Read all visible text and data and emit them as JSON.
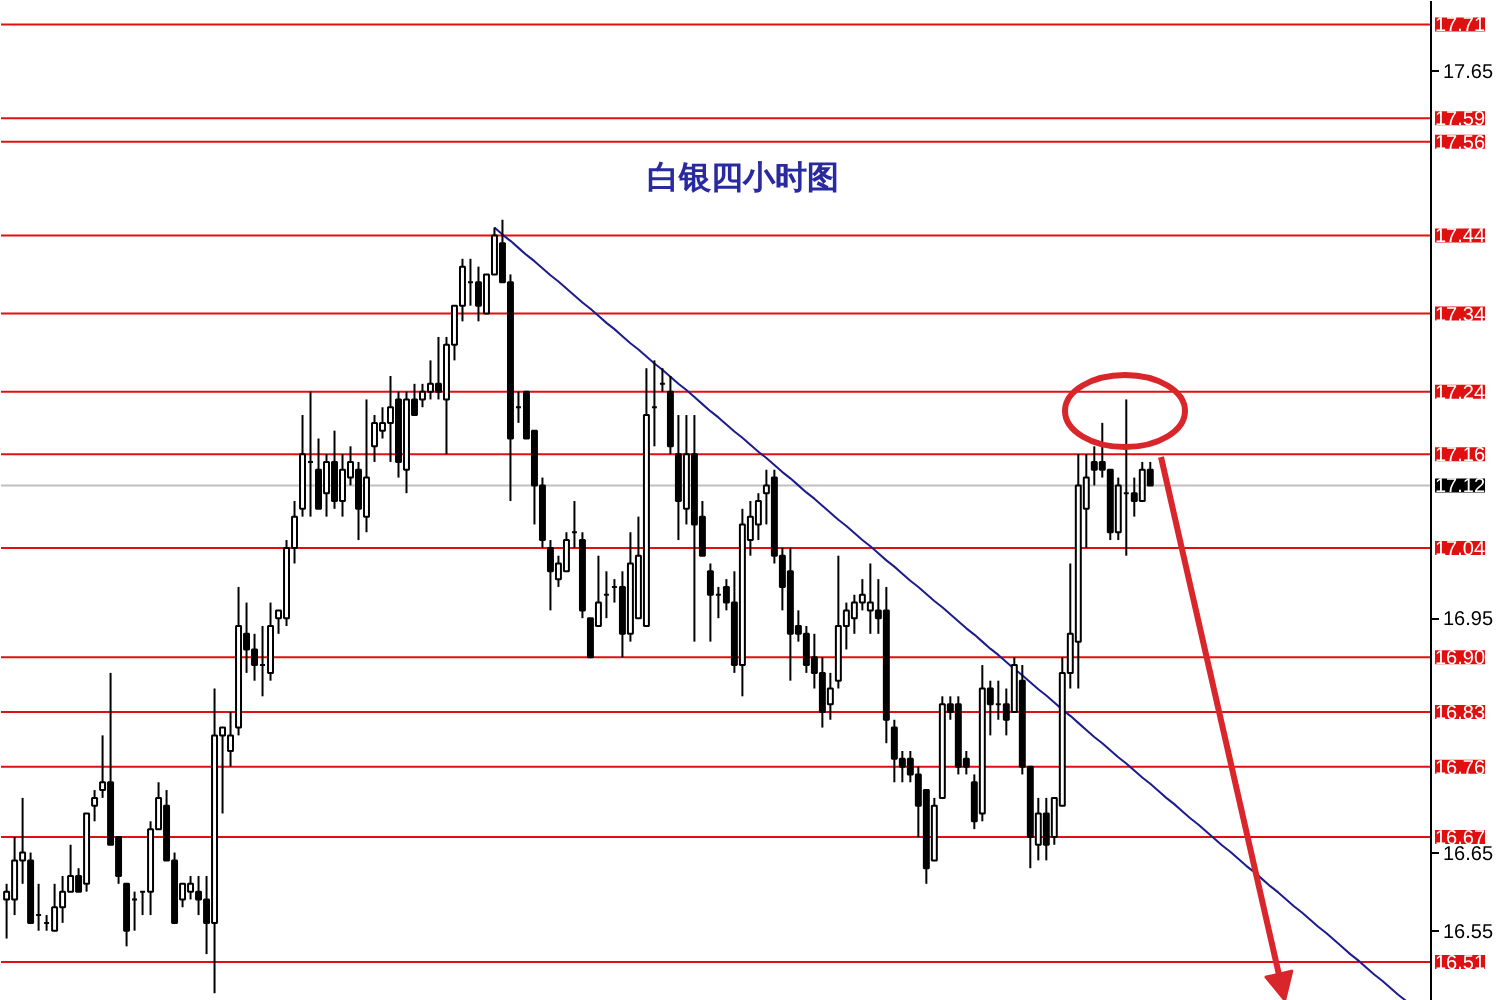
{
  "chart_data": {
    "type": "candlestick",
    "title": "白银四小时图",
    "categories": [
      null,
      null,
      null,
      null,
      null,
      null,
      null,
      null,
      null,
      null,
      null,
      null,
      null,
      null,
      null,
      null,
      null,
      null,
      null,
      null,
      null,
      null,
      null,
      null,
      null,
      null,
      null,
      null,
      null,
      null,
      null,
      null,
      null,
      null,
      null,
      null,
      null,
      null,
      null,
      null,
      null,
      null,
      null,
      null,
      null,
      null,
      null,
      null,
      null,
      null,
      null,
      null,
      null,
      null,
      null,
      null,
      null,
      null,
      null,
      null,
      null,
      null,
      null,
      null,
      null,
      null,
      null,
      null,
      null,
      null,
      null,
      null,
      null,
      null,
      null,
      null,
      null,
      null,
      null,
      null,
      null,
      null,
      null,
      null,
      null,
      null,
      null,
      null,
      null,
      null,
      null,
      null,
      null,
      null,
      null,
      null,
      null,
      null,
      null,
      null,
      null,
      null,
      null,
      null,
      null,
      null,
      null,
      null,
      null,
      null,
      null,
      null,
      null,
      null,
      null,
      null,
      null,
      null,
      null,
      null,
      null,
      null,
      null,
      null,
      null,
      null,
      null,
      null,
      null,
      null,
      null,
      null,
      null,
      null,
      null,
      null,
      null,
      null,
      null,
      null,
      null,
      null,
      null,
      null,
      null,
      null,
      null,
      null,
      null,
      null,
      null,
      null,
      null,
      null,
      null,
      null,
      null,
      null,
      null,
      null,
      null,
      null,
      null,
      null,
      null,
      null,
      null,
      null,
      null,
      null,
      null,
      null,
      null,
      null,
      null,
      null,
      null,
      null
    ],
    "ohlc": [
      [
        16.59,
        16.61,
        16.54,
        16.6
      ],
      [
        16.59,
        16.67,
        16.57,
        16.64
      ],
      [
        16.64,
        16.72,
        16.61,
        16.65
      ],
      [
        16.64,
        16.65,
        16.56,
        16.56
      ],
      [
        16.57,
        16.61,
        16.55,
        16.57
      ],
      [
        16.56,
        16.57,
        16.55,
        16.56
      ],
      [
        16.55,
        16.61,
        16.55,
        16.58
      ],
      [
        16.58,
        16.62,
        16.56,
        16.6
      ],
      [
        16.6,
        16.66,
        16.6,
        16.62
      ],
      [
        16.62,
        16.63,
        16.6,
        16.6
      ],
      [
        16.61,
        16.7,
        16.6,
        16.7
      ],
      [
        16.71,
        16.73,
        16.69,
        16.72
      ],
      [
        16.73,
        16.8,
        16.72,
        16.74
      ],
      [
        16.74,
        16.88,
        16.66,
        16.66
      ],
      [
        16.67,
        16.67,
        16.61,
        16.62
      ],
      [
        16.61,
        16.61,
        16.53,
        16.55
      ],
      [
        16.59,
        16.6,
        16.55,
        16.59
      ],
      [
        16.6,
        16.6,
        16.57,
        16.6
      ],
      [
        16.6,
        16.69,
        16.57,
        16.68
      ],
      [
        16.68,
        16.74,
        16.68,
        16.72
      ],
      [
        16.71,
        16.73,
        16.64,
        16.64
      ],
      [
        16.64,
        16.65,
        16.56,
        16.56
      ],
      [
        16.59,
        16.61,
        16.58,
        16.61
      ],
      [
        16.6,
        16.62,
        16.59,
        16.61
      ],
      [
        16.6,
        16.62,
        16.57,
        16.59
      ],
      [
        16.59,
        16.62,
        16.52,
        16.56
      ],
      [
        16.56,
        16.86,
        16.47,
        16.8
      ],
      [
        16.8,
        16.81,
        16.7,
        16.81
      ],
      [
        16.78,
        16.83,
        16.76,
        16.8
      ],
      [
        16.81,
        16.99,
        16.8,
        16.94
      ],
      [
        16.93,
        16.97,
        16.88,
        16.91
      ],
      [
        16.91,
        16.93,
        16.87,
        16.89
      ],
      [
        16.89,
        16.94,
        16.85,
        16.89
      ],
      [
        16.88,
        16.97,
        16.87,
        16.94
      ],
      [
        16.95,
        16.96,
        16.93,
        16.96
      ],
      [
        16.95,
        17.05,
        16.94,
        17.04
      ],
      [
        17.04,
        17.1,
        17.02,
        17.08
      ],
      [
        17.09,
        17.21,
        17.08,
        17.16
      ],
      [
        17.15,
        17.24,
        17.08,
        17.15
      ],
      [
        17.14,
        17.18,
        17.09,
        17.09
      ],
      [
        17.11,
        17.16,
        17.08,
        17.15
      ],
      [
        17.15,
        17.19,
        17.09,
        17.1
      ],
      [
        17.1,
        17.16,
        17.08,
        17.14
      ],
      [
        17.13,
        17.17,
        17.12,
        17.15
      ],
      [
        17.14,
        17.15,
        17.05,
        17.09
      ],
      [
        17.08,
        17.23,
        17.06,
        17.13
      ],
      [
        17.17,
        17.21,
        17.15,
        17.2
      ],
      [
        17.19,
        17.22,
        17.18,
        17.2
      ],
      [
        17.2,
        17.26,
        17.15,
        17.22
      ],
      [
        17.23,
        17.24,
        17.13,
        17.15
      ],
      [
        17.14,
        17.24,
        17.11,
        17.23
      ],
      [
        17.23,
        17.25,
        17.21,
        17.21
      ],
      [
        17.23,
        17.25,
        17.22,
        17.24
      ],
      [
        17.24,
        17.28,
        17.23,
        17.25
      ],
      [
        17.25,
        17.31,
        17.23,
        17.24
      ],
      [
        17.23,
        17.31,
        17.16,
        17.3
      ],
      [
        17.3,
        17.35,
        17.28,
        17.35
      ],
      [
        17.35,
        17.41,
        17.33,
        17.4
      ],
      [
        17.38,
        17.41,
        17.35,
        17.38
      ],
      [
        17.38,
        17.4,
        17.33,
        17.35
      ],
      [
        17.34,
        17.39,
        17.34,
        17.39
      ],
      [
        17.39,
        17.45,
        17.39,
        17.44
      ],
      [
        17.43,
        17.46,
        17.38,
        17.38
      ],
      [
        17.38,
        17.39,
        17.1,
        17.18
      ],
      [
        17.22,
        17.24,
        17.2,
        17.22
      ],
      [
        17.24,
        17.24,
        17.18,
        17.18
      ],
      [
        17.19,
        17.19,
        17.07,
        17.12
      ],
      [
        17.12,
        17.13,
        17.04,
        17.05
      ],
      [
        17.04,
        17.05,
        16.96,
        17.01
      ],
      [
        17.0,
        17.03,
        16.99,
        17.02
      ],
      [
        17.01,
        17.06,
        17.01,
        17.05
      ],
      [
        17.06,
        17.1,
        17.04,
        17.06
      ],
      [
        17.05,
        17.06,
        16.95,
        16.96
      ],
      [
        16.95,
        16.95,
        16.9,
        16.9
      ],
      [
        16.94,
        17.03,
        16.94,
        16.97
      ],
      [
        16.98,
        17.01,
        16.95,
        16.98
      ],
      [
        16.99,
        17.0,
        16.97,
        16.99
      ],
      [
        16.99,
        17.01,
        16.9,
        16.93
      ],
      [
        16.93,
        17.06,
        16.92,
        17.02
      ],
      [
        16.95,
        17.08,
        16.95,
        17.03
      ],
      [
        16.94,
        17.27,
        16.94,
        17.21
      ],
      [
        17.22,
        17.28,
        17.17,
        17.22
      ],
      [
        17.25,
        17.27,
        17.24,
        17.25
      ],
      [
        17.24,
        17.26,
        17.16,
        17.17
      ],
      [
        17.16,
        17.21,
        17.05,
        17.1
      ],
      [
        17.09,
        17.21,
        17.07,
        17.16
      ],
      [
        17.16,
        17.21,
        16.92,
        17.07
      ],
      [
        17.08,
        17.1,
        17.03,
        17.03
      ],
      [
        17.01,
        17.02,
        16.92,
        16.98
      ],
      [
        16.98,
        16.99,
        16.95,
        16.98
      ],
      [
        16.99,
        17.0,
        16.96,
        16.97
      ],
      [
        16.97,
        17.01,
        16.88,
        16.89
      ],
      [
        16.89,
        17.09,
        16.85,
        17.07
      ],
      [
        17.05,
        17.1,
        17.03,
        17.08
      ],
      [
        17.07,
        17.11,
        17.05,
        17.1
      ],
      [
        17.11,
        17.14,
        17.07,
        17.12
      ],
      [
        17.13,
        17.14,
        17.02,
        17.03
      ],
      [
        17.03,
        17.04,
        16.96,
        16.99
      ],
      [
        17.01,
        17.04,
        16.87,
        16.93
      ],
      [
        16.94,
        16.96,
        16.92,
        16.93
      ],
      [
        16.93,
        16.94,
        16.88,
        16.89
      ],
      [
        16.9,
        16.93,
        16.86,
        16.88
      ],
      [
        16.88,
        16.9,
        16.81,
        16.83
      ],
      [
        16.84,
        16.88,
        16.82,
        16.86
      ],
      [
        16.87,
        17.03,
        16.86,
        16.94
      ],
      [
        16.94,
        16.97,
        16.91,
        16.96
      ],
      [
        16.95,
        16.98,
        16.93,
        16.97
      ],
      [
        16.97,
        17.0,
        16.96,
        16.98
      ],
      [
        16.96,
        17.02,
        16.93,
        16.97
      ],
      [
        16.96,
        17.0,
        16.93,
        16.95
      ],
      [
        16.96,
        16.99,
        16.79,
        16.82
      ],
      [
        16.81,
        16.82,
        16.74,
        16.77
      ],
      [
        16.77,
        16.78,
        16.74,
        16.76
      ],
      [
        16.77,
        16.78,
        16.74,
        16.75
      ],
      [
        16.75,
        16.76,
        16.67,
        16.71
      ],
      [
        16.73,
        16.73,
        16.61,
        16.63
      ],
      [
        16.64,
        16.72,
        16.64,
        16.71
      ],
      [
        16.72,
        16.85,
        16.72,
        16.84
      ],
      [
        16.84,
        16.85,
        16.82,
        16.83
      ],
      [
        16.84,
        16.85,
        16.75,
        16.76
      ],
      [
        16.77,
        16.78,
        16.75,
        16.76
      ],
      [
        16.74,
        16.75,
        16.68,
        16.69
      ],
      [
        16.7,
        16.89,
        16.69,
        16.86
      ],
      [
        16.86,
        16.87,
        16.8,
        16.84
      ],
      [
        16.84,
        16.87,
        16.82,
        16.84
      ],
      [
        16.84,
        16.86,
        16.8,
        16.82
      ],
      [
        16.83,
        16.9,
        16.83,
        16.89
      ],
      [
        16.87,
        16.89,
        16.75,
        16.76
      ],
      [
        16.76,
        16.76,
        16.63,
        16.67
      ],
      [
        16.66,
        16.72,
        16.64,
        16.7
      ],
      [
        16.7,
        16.72,
        16.64,
        16.66
      ],
      [
        16.67,
        16.72,
        16.66,
        16.72
      ],
      [
        16.71,
        16.9,
        16.71,
        16.88
      ],
      [
        16.88,
        17.02,
        16.86,
        16.93
      ],
      [
        16.92,
        17.16,
        16.86,
        17.12
      ],
      [
        17.09,
        17.16,
        17.04,
        17.13
      ],
      [
        17.15,
        17.17,
        17.12,
        17.14
      ],
      [
        17.15,
        17.2,
        17.13,
        17.14
      ],
      [
        17.14,
        17.14,
        17.05,
        17.06
      ],
      [
        17.06,
        17.13,
        17.05,
        17.12
      ],
      [
        17.11,
        17.23,
        17.03,
        17.11
      ],
      [
        17.11,
        17.13,
        17.08,
        17.1
      ],
      [
        17.1,
        17.15,
        17.1,
        17.14
      ],
      [
        17.14,
        17.15,
        17.12,
        17.12
      ],
      null,
      null,
      null,
      null,
      null,
      null,
      null,
      null,
      null,
      null,
      null,
      null,
      null,
      null,
      null,
      null,
      null,
      null,
      null,
      null,
      null,
      null,
      null,
      null,
      null,
      null,
      null,
      null,
      null,
      null,
      null,
      null,
      null,
      null
    ],
    "color": "#000000",
    "series": [
      {
        "type": "line",
        "color": "#1c1c8c",
        "values": [
          null,
          null,
          null,
          null,
          null,
          null,
          null,
          null,
          null,
          null,
          null,
          null,
          null,
          null,
          null,
          null,
          null,
          null,
          null,
          null,
          null,
          null,
          null,
          null,
          null,
          null,
          null,
          null,
          null,
          null,
          null,
          null,
          null,
          null,
          null,
          null,
          null,
          null,
          null,
          null,
          null,
          null,
          null,
          null,
          null,
          null,
          null,
          null,
          null,
          null,
          null,
          null,
          null,
          null,
          null,
          null,
          null,
          null,
          null,
          null,
          null,
          17.45,
          17.441,
          17.433,
          17.424,
          17.415,
          17.407,
          17.398,
          17.389,
          17.381,
          17.372,
          17.363,
          17.354,
          17.346,
          17.337,
          17.328,
          17.32,
          17.311,
          17.302,
          17.294,
          17.285,
          17.276,
          17.268,
          17.259,
          17.25,
          17.242,
          17.233,
          17.224,
          17.215,
          17.207,
          17.198,
          17.189,
          17.181,
          17.172,
          17.163,
          17.155,
          17.146,
          17.137,
          17.129,
          17.12,
          17.111,
          17.103,
          17.094,
          17.085,
          17.076,
          17.068,
          17.059,
          17.05,
          17.042,
          17.033,
          17.024,
          17.016,
          17.007,
          16.998,
          16.99,
          16.981,
          16.972,
          16.964,
          16.955,
          16.946,
          16.937,
          16.929,
          16.92,
          16.911,
          16.903,
          16.894,
          16.885,
          16.877,
          16.868,
          16.859,
          16.851,
          16.842,
          16.833,
          16.825,
          16.816,
          16.807,
          16.798,
          16.79,
          16.781,
          16.772,
          16.764,
          16.755,
          16.746,
          16.738,
          16.729,
          16.72,
          16.712,
          16.703,
          16.694,
          16.686,
          16.677,
          16.668,
          16.659,
          16.651,
          16.642,
          16.633,
          16.625,
          16.616,
          16.607,
          16.599,
          16.59,
          16.581,
          16.573,
          16.564,
          16.555,
          16.547,
          16.538,
          16.529,
          16.52,
          16.512,
          16.503,
          16.494,
          16.486,
          16.477,
          16.468,
          16.46,
          null,
          null
        ]
      }
    ],
    "ylim": [
      16.46,
      17.74
    ],
    "yticks": [
      17.65,
      16.95,
      16.65,
      16.55
    ],
    "tick_labels": "y",
    "ref_lines": [
      {
        "axis": "y",
        "value": 17.71,
        "label": "17.71",
        "color": "#e01010"
      },
      {
        "axis": "y",
        "value": 17.59,
        "label": "17.59",
        "color": "#e01010"
      },
      {
        "axis": "y",
        "value": 17.56,
        "label": "17.56",
        "color": "#e01010"
      },
      {
        "axis": "y",
        "value": 17.44,
        "label": "17.44",
        "color": "#e01010"
      },
      {
        "axis": "y",
        "value": 17.34,
        "label": "17.34",
        "color": "#e01010"
      },
      {
        "axis": "y",
        "value": 17.24,
        "label": "17.24",
        "color": "#e01010"
      },
      {
        "axis": "y",
        "value": 17.16,
        "label": "17.16",
        "color": "#e01010"
      },
      {
        "axis": "y",
        "value": 17.12,
        "label": "17.12",
        "color": "#c0c0c0"
      },
      {
        "axis": "y",
        "value": 17.04,
        "label": "17.04",
        "color": "#e01010"
      },
      {
        "axis": "y",
        "value": 16.9,
        "label": "16.90",
        "color": "#e01010"
      },
      {
        "axis": "y",
        "value": 16.83,
        "label": "16.83",
        "color": "#e01010"
      },
      {
        "axis": "y",
        "value": 16.76,
        "label": "16.76",
        "color": "#e01010"
      },
      {
        "axis": "y",
        "value": 16.67,
        "label": "16.67",
        "color": "#e01010"
      },
      {
        "axis": "y",
        "value": 16.51,
        "label": "16.51",
        "color": "#e01010"
      }
    ]
  }
}
